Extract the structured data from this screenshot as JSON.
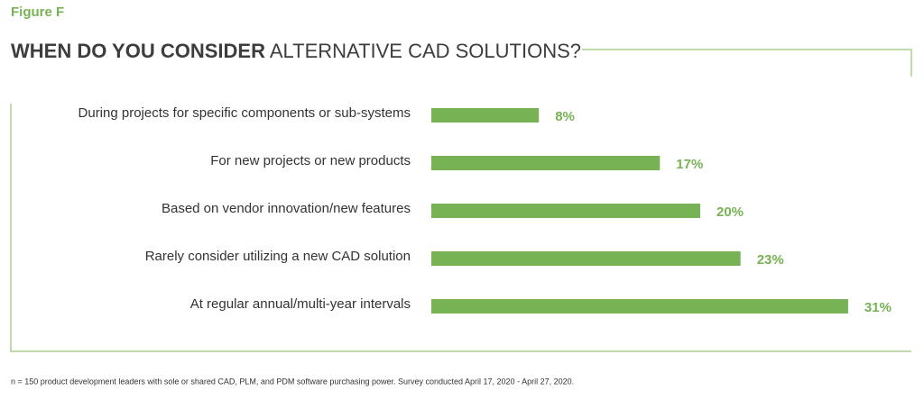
{
  "chart_data": {
    "type": "bar",
    "orientation": "horizontal",
    "figure_label": "Figure F",
    "title": [
      "WHEN DO YOU CONSIDER",
      "ALTERNATIVE CAD SOLUTIONS?"
    ],
    "categories": [
      "During projects for specific components or sub-systems",
      "For new projects or new products",
      "Based on vendor innovation/new features",
      "Rarely consider utilizing a new CAD solution",
      "At regular annual/multi-year intervals"
    ],
    "values": [
      8,
      17,
      20,
      23,
      31
    ],
    "value_labels": [
      "8%",
      "17%",
      "20%",
      "23%",
      "31%"
    ],
    "color": "#77b255",
    "footnote": "n = 150 product development leaders with sole or shared CAD, PLM, and PDM software purchasing power.  Survey conducted April 17, 2020 - April 27, 2020."
  }
}
